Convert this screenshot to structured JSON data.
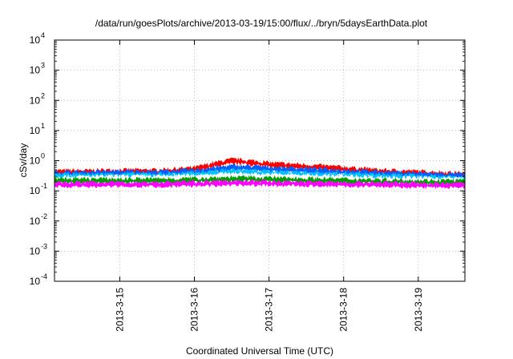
{
  "chart_data": {
    "type": "line",
    "title": "/data/run/goesPlots/archive/2013-03-19/15:00/flux/../bryn/5daysEarthData.plot",
    "xlabel": "Coordinated Universal Time (UTC)",
    "ylabel": "cSv/day",
    "yscale": "log",
    "ylim": [
      0.0001,
      10000
    ],
    "xlim": [
      "2013-03-14 03:00",
      "2013-03-19 15:00"
    ],
    "grid": true,
    "y_ticks": [
      {
        "base": "10",
        "exp": "-4",
        "value": 0.0001
      },
      {
        "base": "10",
        "exp": "-3",
        "value": 0.001
      },
      {
        "base": "10",
        "exp": "-2",
        "value": 0.01
      },
      {
        "base": "10",
        "exp": "-1",
        "value": 0.1
      },
      {
        "base": "10",
        "exp": "0",
        "value": 1
      },
      {
        "base": "10",
        "exp": "1",
        "value": 10
      },
      {
        "base": "10",
        "exp": "2",
        "value": 100
      },
      {
        "base": "10",
        "exp": "3",
        "value": 1000
      },
      {
        "base": "10",
        "exp": "4",
        "value": 10000
      }
    ],
    "x_ticks": [
      {
        "label": "2013-3-15",
        "value": "2013-03-15 00:00"
      },
      {
        "label": "2013-3-16",
        "value": "2013-03-16 00:00"
      },
      {
        "label": "2013-3-17",
        "value": "2013-03-17 00:00"
      },
      {
        "label": "2013-3-18",
        "value": "2013-03-18 00:00"
      },
      {
        "label": "2013-3-19",
        "value": "2013-03-19 00:00"
      }
    ],
    "x": [
      "2013-03-14 03:00",
      "2013-03-14 12:00",
      "2013-03-15 00:00",
      "2013-03-15 12:00",
      "2013-03-16 00:00",
      "2013-03-16 06:00",
      "2013-03-16 12:00",
      "2013-03-16 18:00",
      "2013-03-17 00:00",
      "2013-03-17 12:00",
      "2013-03-18 00:00",
      "2013-03-18 12:00",
      "2013-03-19 00:00",
      "2013-03-19 15:00"
    ],
    "series": [
      {
        "color": "#ff0000",
        "values": [
          0.4,
          0.4,
          0.42,
          0.42,
          0.5,
          0.7,
          0.95,
          0.85,
          0.72,
          0.62,
          0.52,
          0.42,
          0.38,
          0.33
        ]
      },
      {
        "color": "#0060ff",
        "values": [
          0.36,
          0.36,
          0.38,
          0.38,
          0.42,
          0.5,
          0.58,
          0.56,
          0.52,
          0.47,
          0.42,
          0.37,
          0.33,
          0.3
        ]
      },
      {
        "color": "#00c0ff",
        "values": [
          0.3,
          0.3,
          0.31,
          0.31,
          0.34,
          0.38,
          0.42,
          0.4,
          0.38,
          0.35,
          0.32,
          0.29,
          0.27,
          0.25
        ]
      },
      {
        "color": "#ffffff",
        "values": [
          0.25,
          0.25,
          0.26,
          0.26,
          0.28,
          0.3,
          0.32,
          0.31,
          0.3,
          0.28,
          0.26,
          0.24,
          0.23,
          0.22
        ]
      },
      {
        "color": "#00a000",
        "values": [
          0.21,
          0.21,
          0.21,
          0.21,
          0.22,
          0.23,
          0.24,
          0.24,
          0.23,
          0.22,
          0.21,
          0.2,
          0.19,
          0.19
        ]
      },
      {
        "color": "#ff00ff",
        "values": [
          0.16,
          0.16,
          0.16,
          0.16,
          0.17,
          0.17,
          0.18,
          0.18,
          0.17,
          0.17,
          0.16,
          0.16,
          0.15,
          0.15
        ]
      }
    ]
  }
}
